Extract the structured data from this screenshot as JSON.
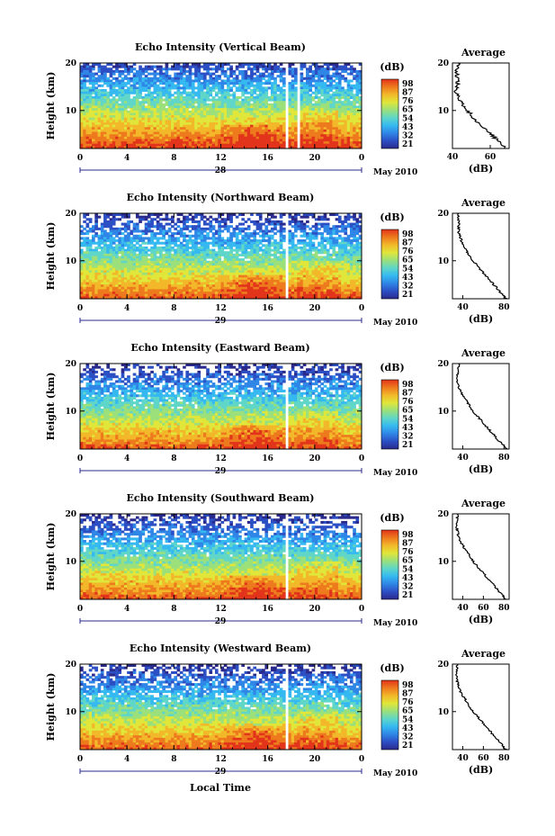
{
  "figure": {
    "xlabel": "Local Time",
    "month_label": "May 2010",
    "avg_title": "Average",
    "avg_xlabel": "(dB)",
    "ylabel": "Height (km)",
    "cbar_label": "(dB)",
    "cbar_ticks": [
      "98",
      "87",
      "76",
      "65",
      "54",
      "43",
      "32",
      "21"
    ],
    "colormap": [
      "#2a2a8c",
      "#2c4fc4",
      "#2f86e6",
      "#35b9f0",
      "#5fd6c8",
      "#9be07a",
      "#e0e63a",
      "#f2b82a",
      "#ee7a1e",
      "#e2341a"
    ]
  },
  "chart_data": [
    {
      "type": "heatmap",
      "title": "Echo Intensity (Vertical Beam)",
      "xlabel": "",
      "ylabel": "Height (km)",
      "xlim": [
        0,
        24
      ],
      "ylim": [
        2,
        20
      ],
      "xticks": [
        "0",
        "4",
        "8",
        "12",
        "16",
        "20",
        "0"
      ],
      "yticks": [
        "10",
        "20"
      ],
      "date_label": "28",
      "colorbar": {
        "label": "(dB)",
        "ticks": [
          98,
          87,
          76,
          65,
          54,
          43,
          32,
          21
        ]
      },
      "data_gaps_hours": [
        [
          17.6,
          17.8
        ],
        [
          18.4,
          18.7
        ]
      ],
      "average_profile": {
        "title": "Average",
        "xlabel": "(dB)",
        "xlim": [
          40,
          70
        ],
        "xticks": [
          "40",
          "60"
        ],
        "yticks": [
          "10",
          "20"
        ],
        "height_km": [
          2,
          4,
          6,
          8,
          10,
          12,
          14,
          16,
          18,
          20
        ],
        "value_db": [
          68,
          63,
          58,
          52,
          48,
          44,
          42,
          43,
          42,
          43
        ]
      }
    },
    {
      "type": "heatmap",
      "title": "Echo Intensity (Northward Beam)",
      "xlabel": "",
      "ylabel": "Height (km)",
      "xlim": [
        0,
        24
      ],
      "ylim": [
        2,
        20
      ],
      "xticks": [
        "0",
        "4",
        "8",
        "12",
        "16",
        "20",
        "0"
      ],
      "yticks": [
        "10",
        "20"
      ],
      "date_label": "29",
      "colorbar": {
        "label": "(dB)",
        "ticks": [
          98,
          87,
          76,
          65,
          54,
          43,
          32,
          21
        ]
      },
      "data_gaps_hours": [
        [
          17.6,
          17.8
        ],
        [
          18.4,
          18.6
        ]
      ],
      "average_profile": {
        "title": "Average",
        "xlabel": "(dB)",
        "xlim": [
          30,
          85
        ],
        "xticks": [
          "40",
          "80"
        ],
        "yticks": [
          "10",
          "20"
        ],
        "height_km": [
          2,
          4,
          6,
          8,
          10,
          12,
          14,
          16,
          18,
          20
        ],
        "value_db": [
          82,
          74,
          66,
          58,
          50,
          44,
          39,
          36,
          36,
          36
        ]
      }
    },
    {
      "type": "heatmap",
      "title": "Echo Intensity (Eastward Beam)",
      "xlabel": "",
      "ylabel": "Height (km)",
      "xlim": [
        0,
        24
      ],
      "ylim": [
        2,
        20
      ],
      "xticks": [
        "0",
        "4",
        "8",
        "12",
        "16",
        "20",
        "0"
      ],
      "yticks": [
        "10",
        "20"
      ],
      "date_label": "29",
      "colorbar": {
        "label": "(dB)",
        "ticks": [
          98,
          87,
          76,
          65,
          54,
          43,
          32,
          21
        ]
      },
      "data_gaps_hours": [
        [
          17.6,
          17.8
        ],
        [
          18.4,
          18.6
        ]
      ],
      "average_profile": {
        "title": "Average",
        "xlabel": "(dB)",
        "xlim": [
          30,
          85
        ],
        "xticks": [
          "40",
          "80"
        ],
        "yticks": [
          "10",
          "20"
        ],
        "height_km": [
          2,
          4,
          6,
          8,
          10,
          12,
          14,
          16,
          18,
          20
        ],
        "value_db": [
          83,
          74,
          66,
          58,
          50,
          44,
          38,
          35,
          35,
          36
        ]
      }
    },
    {
      "type": "heatmap",
      "title": "Echo Intensity (Southward Beam)",
      "xlabel": "",
      "ylabel": "Height (km)",
      "xlim": [
        0,
        24
      ],
      "ylim": [
        2,
        20
      ],
      "xticks": [
        "0",
        "4",
        "8",
        "12",
        "16",
        "20",
        "0"
      ],
      "yticks": [
        "10",
        "20"
      ],
      "date_label": "29",
      "colorbar": {
        "label": "(dB)",
        "ticks": [
          98,
          87,
          76,
          65,
          54,
          43,
          32,
          21
        ]
      },
      "data_gaps_hours": [
        [
          17.6,
          17.8
        ],
        [
          18.4,
          18.6
        ]
      ],
      "average_profile": {
        "title": "Average",
        "xlabel": "(dB)",
        "xlim": [
          30,
          85
        ],
        "xticks": [
          "40",
          "60",
          "80"
        ],
        "yticks": [
          "10",
          "20"
        ],
        "height_km": [
          2,
          4,
          6,
          8,
          10,
          12,
          14,
          16,
          18,
          20
        ],
        "value_db": [
          82,
          74,
          66,
          58,
          50,
          44,
          38,
          35,
          34,
          35
        ]
      }
    },
    {
      "type": "heatmap",
      "title": "Echo Intensity (Westward Beam)",
      "xlabel": "Local Time",
      "ylabel": "Height (km)",
      "xlim": [
        0,
        24
      ],
      "ylim": [
        2,
        20
      ],
      "xticks": [
        "0",
        "4",
        "8",
        "12",
        "16",
        "20",
        "0"
      ],
      "yticks": [
        "10",
        "20"
      ],
      "date_label": "29",
      "colorbar": {
        "label": "(dB)",
        "ticks": [
          98,
          87,
          76,
          65,
          54,
          43,
          32,
          21
        ]
      },
      "data_gaps_hours": [
        [
          17.6,
          17.8
        ],
        [
          18.4,
          18.6
        ]
      ],
      "average_profile": {
        "title": "Average",
        "xlabel": "(dB)",
        "xlim": [
          30,
          85
        ],
        "xticks": [
          "40",
          "60",
          "80"
        ],
        "yticks": [
          "10",
          "20"
        ],
        "height_km": [
          2,
          4,
          6,
          8,
          10,
          12,
          14,
          16,
          18,
          20
        ],
        "value_db": [
          82,
          74,
          66,
          58,
          50,
          44,
          38,
          35,
          34,
          35
        ]
      }
    }
  ]
}
